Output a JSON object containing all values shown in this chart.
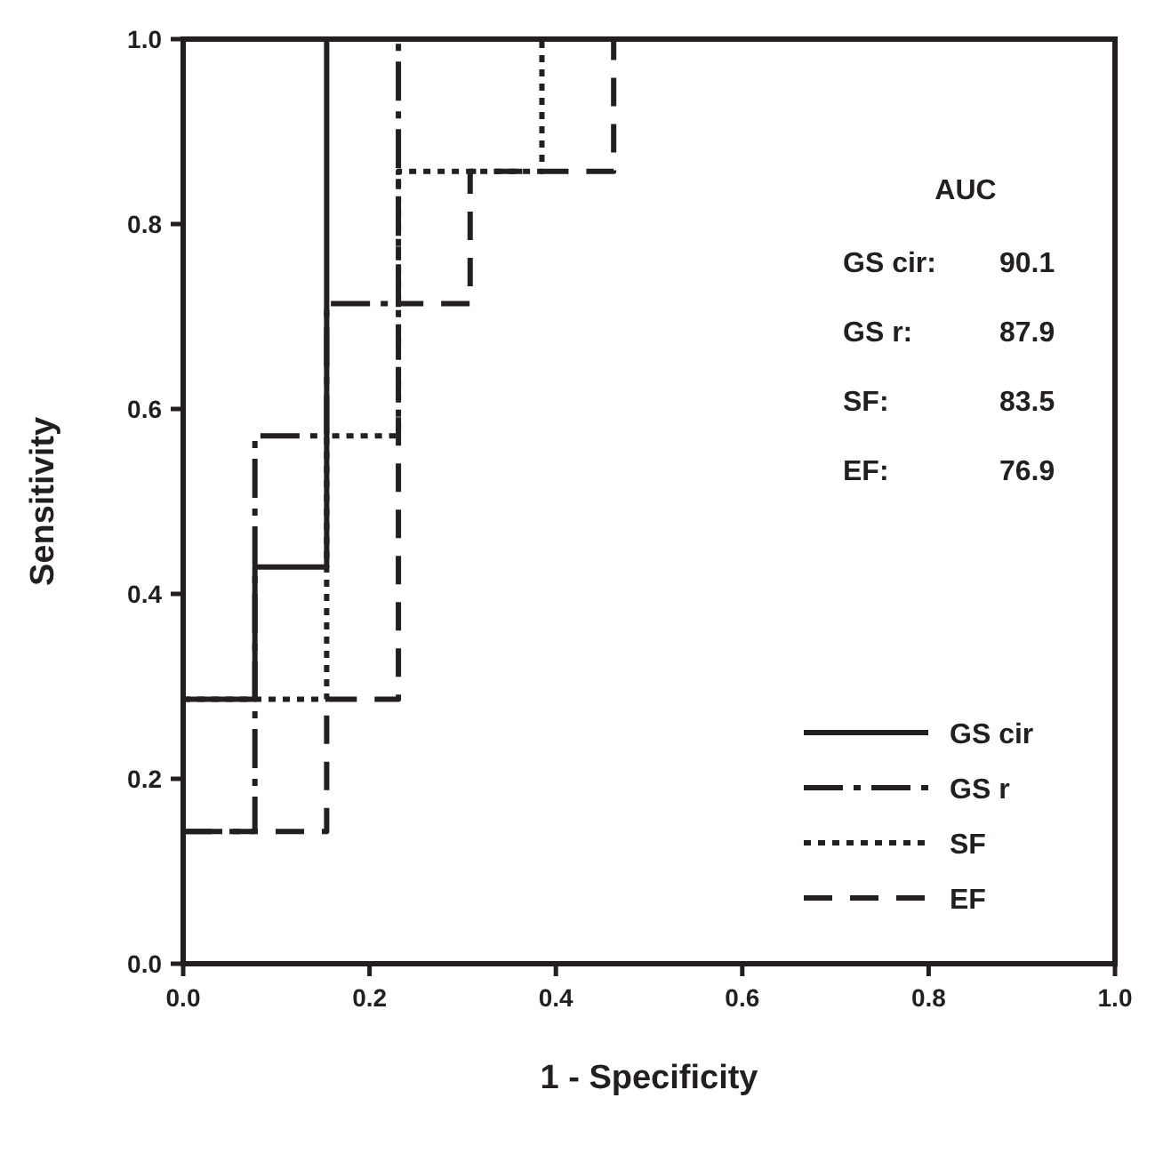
{
  "chart_data": {
    "type": "step",
    "xlabel": "1 - Specificity",
    "ylabel": "Sensitivity",
    "xlim": [
      0,
      1
    ],
    "ylim": [
      0,
      1
    ],
    "xticks": [
      {
        "value": 0,
        "label": "0.0"
      },
      {
        "value": 0.2,
        "label": "0.2"
      },
      {
        "value": 0.4,
        "label": "0.4"
      },
      {
        "value": 0.6,
        "label": "0.6"
      },
      {
        "value": 0.8,
        "label": "0.8"
      },
      {
        "value": 1,
        "label": "1.0"
      }
    ],
    "yticks": [
      {
        "value": 0,
        "label": "0.0"
      },
      {
        "value": 0.2,
        "label": "0.2"
      },
      {
        "value": 0.4,
        "label": "0.4"
      },
      {
        "value": 0.6,
        "label": "0.6"
      },
      {
        "value": 0.8,
        "label": "0.8"
      },
      {
        "value": 1,
        "label": "1.0"
      }
    ],
    "grid": false,
    "legend": "bottom right",
    "annotations": [
      "AUC",
      "GS cir:",
      "90.1",
      "GS r:",
      "87.9",
      "SF:",
      "83.5",
      "EF:",
      "76.9"
    ],
    "series": [
      {
        "name": "GS cir",
        "color": "#231f20",
        "line_style": "solid",
        "x": [
          0,
          0.077,
          0.154,
          1
        ],
        "values": [
          0.286,
          0.429,
          1,
          1
        ]
      },
      {
        "name": "GS r",
        "color": "#231f20",
        "line_style": "dashdot",
        "x": [
          0,
          0.077,
          0.154,
          0.231,
          1
        ],
        "values": [
          0.143,
          0.571,
          0.714,
          1,
          1
        ]
      },
      {
        "name": "SF",
        "color": "#231f20",
        "line_style": "dotted",
        "x": [
          0,
          0.154,
          0.231,
          0.385,
          1
        ],
        "values": [
          0.286,
          0.571,
          0.857,
          1,
          1
        ]
      },
      {
        "name": "EF",
        "color": "#231f20",
        "line_style": "dashed",
        "x": [
          0,
          0.154,
          0.231,
          0.308,
          0.462,
          1
        ],
        "values": [
          0.143,
          0.286,
          0.714,
          0.857,
          1,
          1
        ]
      }
    ]
  }
}
